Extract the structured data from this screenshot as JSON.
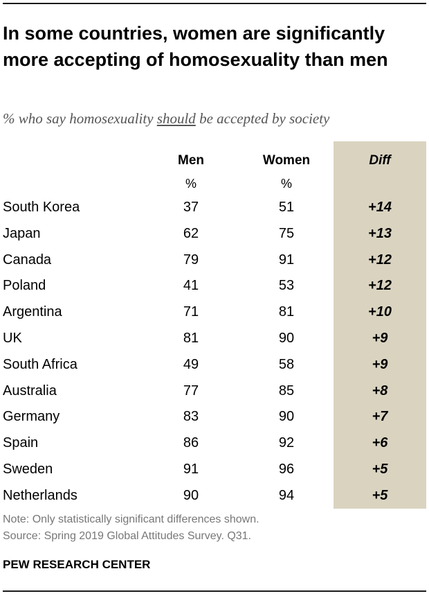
{
  "title": "In some countries, women are significantly more accepting of homosexuality than men",
  "subtitle": {
    "pre": "% who say homosexuality ",
    "underlined": "should",
    "post": " be accepted by society"
  },
  "chart_data": {
    "type": "table",
    "title": "In some countries, women are significantly more accepting of homosexuality than men",
    "subtitle": "% who say homosexuality should be accepted by society",
    "columns": [
      "Men",
      "Women",
      "Diff"
    ],
    "units": [
      "%",
      "%",
      ""
    ],
    "rows": [
      {
        "country": "South Korea",
        "men": 37,
        "women": 51,
        "diff": "+14"
      },
      {
        "country": "Japan",
        "men": 62,
        "women": 75,
        "diff": "+13"
      },
      {
        "country": "Canada",
        "men": 79,
        "women": 91,
        "diff": "+12"
      },
      {
        "country": "Poland",
        "men": 41,
        "women": 53,
        "diff": "+12"
      },
      {
        "country": "Argentina",
        "men": 71,
        "women": 81,
        "diff": "+10"
      },
      {
        "country": "UK",
        "men": 81,
        "women": 90,
        "diff": "+9"
      },
      {
        "country": "South Africa",
        "men": 49,
        "women": 58,
        "diff": "+9"
      },
      {
        "country": "Australia",
        "men": 77,
        "women": 85,
        "diff": "+8"
      },
      {
        "country": "Germany",
        "men": 83,
        "women": 90,
        "diff": "+7"
      },
      {
        "country": "Spain",
        "men": 86,
        "women": 92,
        "diff": "+6"
      },
      {
        "country": "Sweden",
        "men": 91,
        "women": 96,
        "diff": "+5"
      },
      {
        "country": "Netherlands",
        "men": 90,
        "women": 94,
        "diff": "+5"
      }
    ]
  },
  "note": "Note: Only statistically significant differences shown.",
  "source": "Source: Spring 2019 Global Attitudes Survey. Q31.",
  "brand": "PEW RESEARCH CENTER",
  "colors": {
    "diff_band": "#d9d3c0",
    "note_text": "#777777",
    "subtitle_text": "#555555"
  }
}
